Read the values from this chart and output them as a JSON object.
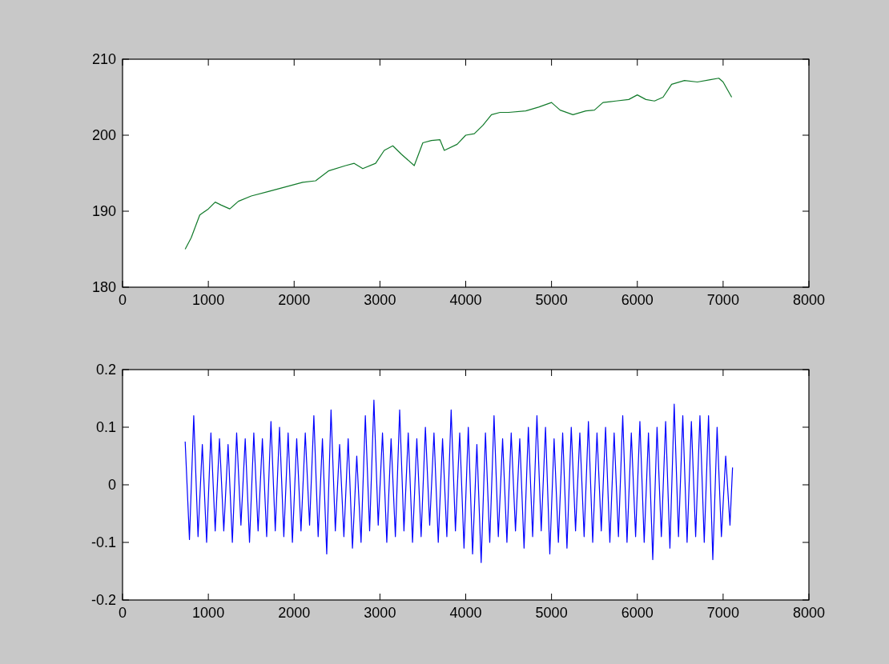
{
  "chart_data": [
    {
      "type": "line",
      "x": [
        730,
        800,
        850,
        900,
        1000,
        1080,
        1150,
        1250,
        1350,
        1500,
        1700,
        1900,
        2100,
        2250,
        2400,
        2600,
        2700,
        2800,
        2950,
        3050,
        3150,
        3250,
        3400,
        3500,
        3600,
        3700,
        3750,
        3900,
        4000,
        4100,
        4200,
        4300,
        4400,
        4500,
        4700,
        4850,
        5000,
        5100,
        5250,
        5400,
        5500,
        5600,
        5750,
        5900,
        6000,
        6100,
        6200,
        6300,
        6400,
        6550,
        6700,
        6850,
        6950,
        7000,
        7100
      ],
      "series": [
        {
          "color": "#117a2a",
          "values": [
            185,
            186.5,
            188,
            189.5,
            190.3,
            191.2,
            190.8,
            190.3,
            191.3,
            192,
            192.6,
            193.2,
            193.8,
            194,
            195.3,
            196,
            196.3,
            195.6,
            196.3,
            198,
            198.6,
            197.5,
            196,
            199,
            199.3,
            199.4,
            198,
            198.8,
            200,
            200.2,
            201.3,
            202.7,
            203,
            203,
            203.2,
            203.7,
            204.3,
            203.3,
            202.7,
            203.2,
            203.3,
            204.3,
            204.5,
            204.7,
            205.3,
            204.7,
            204.5,
            205,
            206.7,
            207.2,
            207,
            207.3,
            207.5,
            207,
            205
          ]
        }
      ],
      "xlim": [
        0,
        8000
      ],
      "xticks": [
        0,
        1000,
        2000,
        3000,
        4000,
        5000,
        6000,
        7000,
        8000
      ],
      "ylim": [
        180,
        210
      ],
      "yticks": [
        180,
        190,
        200,
        210
      ],
      "grid": false,
      "marker": "none",
      "line_style": "solid"
    },
    {
      "type": "line",
      "x": [
        730,
        780,
        830,
        880,
        930,
        980,
        1030,
        1080,
        1130,
        1180,
        1230,
        1280,
        1330,
        1380,
        1430,
        1480,
        1530,
        1580,
        1630,
        1680,
        1730,
        1780,
        1830,
        1880,
        1930,
        1980,
        2030,
        2080,
        2130,
        2180,
        2230,
        2280,
        2330,
        2380,
        2430,
        2480,
        2530,
        2580,
        2630,
        2680,
        2730,
        2780,
        2830,
        2880,
        2930,
        2980,
        3030,
        3080,
        3130,
        3180,
        3230,
        3280,
        3330,
        3380,
        3430,
        3480,
        3530,
        3580,
        3630,
        3680,
        3730,
        3780,
        3830,
        3880,
        3930,
        3980,
        4030,
        4080,
        4130,
        4180,
        4230,
        4280,
        4330,
        4380,
        4430,
        4480,
        4530,
        4580,
        4630,
        4680,
        4730,
        4780,
        4830,
        4880,
        4930,
        4980,
        5030,
        5080,
        5130,
        5180,
        5230,
        5280,
        5330,
        5380,
        5430,
        5480,
        5530,
        5580,
        5630,
        5680,
        5730,
        5780,
        5830,
        5880,
        5930,
        5980,
        6030,
        6080,
        6130,
        6180,
        6230,
        6280,
        6330,
        6380,
        6430,
        6480,
        6530,
        6580,
        6630,
        6680,
        6730,
        6780,
        6830,
        6880,
        6930,
        6980,
        7030,
        7080,
        7110
      ],
      "series": [
        {
          "color": "#0000ff",
          "values": [
            0.075,
            -0.095,
            0.12,
            -0.09,
            0.07,
            -0.1,
            0.09,
            -0.08,
            0.08,
            -0.08,
            0.07,
            -0.1,
            0.09,
            -0.07,
            0.08,
            -0.1,
            0.09,
            -0.08,
            0.08,
            -0.09,
            0.11,
            -0.08,
            0.1,
            -0.09,
            0.09,
            -0.1,
            0.08,
            -0.08,
            0.09,
            -0.07,
            0.12,
            -0.09,
            0.08,
            -0.12,
            0.13,
            -0.08,
            0.07,
            -0.09,
            0.08,
            -0.11,
            0.05,
            -0.1,
            0.12,
            -0.08,
            0.147,
            -0.07,
            0.09,
            -0.1,
            0.08,
            -0.09,
            0.13,
            -0.08,
            0.09,
            -0.1,
            0.08,
            -0.09,
            0.1,
            -0.07,
            0.09,
            -0.1,
            0.08,
            -0.09,
            0.13,
            -0.08,
            0.09,
            -0.11,
            0.1,
            -0.12,
            0.07,
            -0.135,
            0.09,
            -0.1,
            0.12,
            -0.09,
            0.08,
            -0.1,
            0.09,
            -0.08,
            0.08,
            -0.11,
            0.1,
            -0.09,
            0.12,
            -0.08,
            0.1,
            -0.12,
            0.08,
            -0.1,
            0.09,
            -0.11,
            0.1,
            -0.08,
            0.09,
            -0.09,
            0.11,
            -0.1,
            0.09,
            -0.08,
            0.1,
            -0.1,
            0.09,
            -0.09,
            0.12,
            -0.1,
            0.09,
            -0.09,
            0.11,
            -0.1,
            0.09,
            -0.13,
            0.1,
            -0.09,
            0.11,
            -0.11,
            0.14,
            -0.09,
            0.12,
            -0.1,
            0.11,
            -0.09,
            0.12,
            -0.1,
            0.12,
            -0.13,
            0.1,
            -0.09,
            0.05,
            -0.07,
            0.03
          ]
        }
      ],
      "xlim": [
        0,
        8000
      ],
      "xticks": [
        0,
        1000,
        2000,
        3000,
        4000,
        5000,
        6000,
        7000,
        8000
      ],
      "ylim": [
        -0.2,
        0.2
      ],
      "yticks": [
        -0.2,
        -0.1,
        0,
        0.1,
        0.2
      ],
      "grid": false,
      "marker": "none",
      "line_style": "solid"
    }
  ]
}
